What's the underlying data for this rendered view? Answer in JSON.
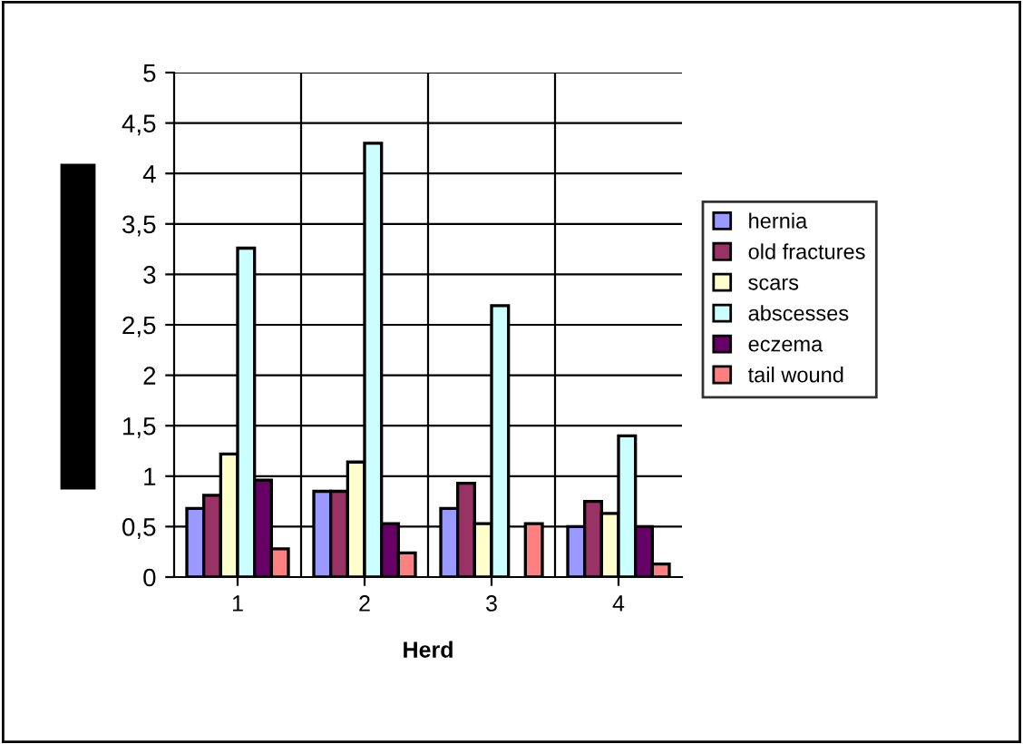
{
  "chart_data": {
    "type": "bar",
    "xlabel": "Herd",
    "categories": [
      "1",
      "2",
      "3",
      "4"
    ],
    "series": [
      {
        "name": "hernia",
        "color": "#9999ff",
        "values": [
          0.68,
          0.85,
          0.68,
          0.5
        ]
      },
      {
        "name": "old fractures",
        "color": "#993366",
        "values": [
          0.81,
          0.85,
          0.93,
          0.75
        ]
      },
      {
        "name": "scars",
        "color": "#ffffcc",
        "values": [
          1.22,
          1.14,
          0.53,
          0.63
        ]
      },
      {
        "name": "abscesses",
        "color": "#ccffff",
        "values": [
          3.26,
          4.3,
          2.69,
          1.4
        ]
      },
      {
        "name": "eczema",
        "color": "#660066",
        "values": [
          0.96,
          0.53,
          null,
          0.5
        ]
      },
      {
        "name": "tail wound",
        "color": "#ff8080",
        "values": [
          0.28,
          0.24,
          0.53,
          0.13
        ]
      }
    ],
    "ylim": [
      0,
      5
    ],
    "yticks": [
      0,
      {
        "value": 0.5,
        "label": "0,5"
      },
      1,
      {
        "value": 1.5,
        "label": "1,5"
      },
      2,
      {
        "value": 2.5,
        "label": "2,5"
      },
      3,
      {
        "value": 3.5,
        "label": "3,5"
      },
      4,
      {
        "value": 4.5,
        "label": "4,5"
      },
      5
    ],
    "grid": true,
    "legend": "right"
  }
}
